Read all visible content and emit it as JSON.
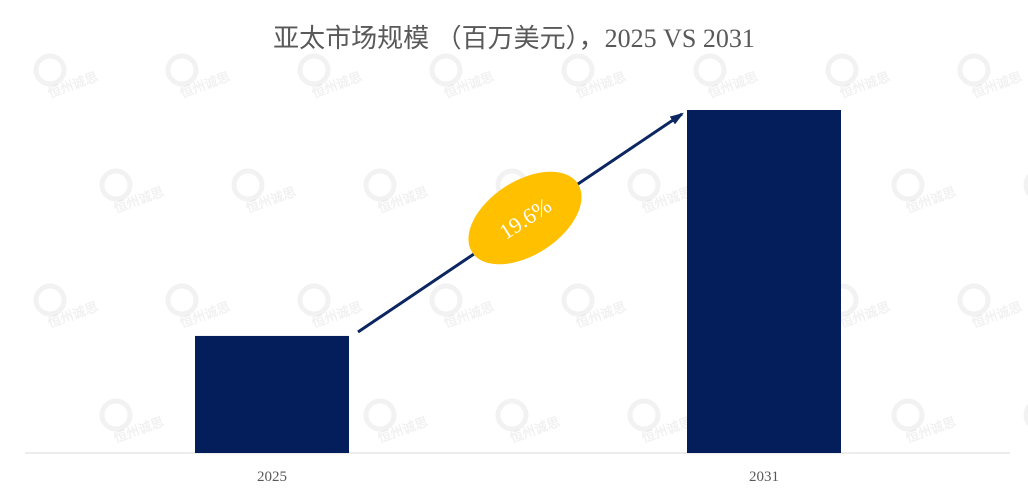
{
  "chart_data": {
    "type": "bar",
    "title": "亚太市场规模 （百万美元），2025 VS 2031",
    "categories": [
      "2025",
      "2031"
    ],
    "values": [
      1.0,
      2.93
    ],
    "value_note": "no values printed; relative scale with 2025 = 1",
    "ylim": [
      0,
      2.93
    ],
    "xlabel": "",
    "ylabel": "",
    "grid": false,
    "annotation": {
      "label": "19.6%",
      "type": "growth-arrow",
      "from": "2025",
      "to": "2031"
    },
    "colors": {
      "bar": "#041E5C",
      "arrow": "#0B2660",
      "badge": "#FFC000",
      "badge_text": "#FFFFFF",
      "title": "#595959",
      "axis": "#D9D9D9"
    }
  },
  "watermark": "恒州诚思"
}
